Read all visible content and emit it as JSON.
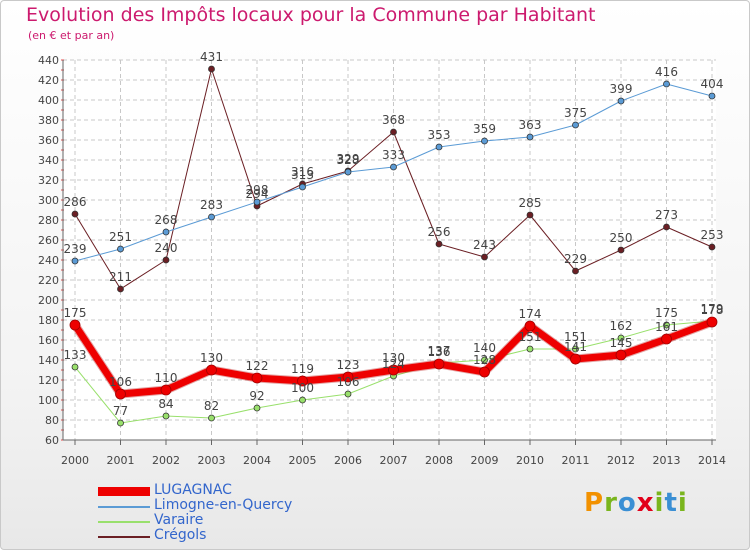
{
  "title": "Evolution des Impôts locaux pour la Commune par Habitant",
  "subtitle": "(en € et par an)",
  "brand": {
    "letters": [
      "P",
      "r",
      "o",
      "x",
      "i",
      "t",
      "i"
    ],
    "colors": [
      "#f29100",
      "#7ab51d",
      "#3a8fd4",
      "#e2001a",
      "#7ab51d",
      "#3a8fd4",
      "#7ab51d"
    ]
  },
  "chart_data": {
    "type": "line",
    "x": [
      "2000",
      "2001",
      "2002",
      "2003",
      "2004",
      "2005",
      "2006",
      "2007",
      "2008",
      "2009",
      "2010",
      "2011",
      "2012",
      "2013",
      "2014"
    ],
    "ylim": [
      60,
      440
    ],
    "yticks": [
      60,
      80,
      100,
      120,
      140,
      160,
      180,
      200,
      220,
      240,
      260,
      280,
      300,
      320,
      340,
      360,
      380,
      400,
      420,
      440
    ],
    "grid": true,
    "legend_position": "bottom-left",
    "series": [
      {
        "name": "Crégols",
        "color": "#6b1f24",
        "width": 1,
        "values": [
          286,
          211,
          240,
          431,
          294,
          316,
          329,
          368,
          256,
          243,
          285,
          229,
          250,
          273,
          253
        ],
        "labels": [
          "286",
          "211",
          "240",
          "431",
          "294",
          "316",
          "329",
          "368",
          "256",
          "243",
          "285",
          "229",
          "250",
          "273",
          "253"
        ]
      },
      {
        "name": "Limogne-en-Quercy",
        "color": "#5b9bd5",
        "width": 1,
        "values": [
          239,
          251,
          268,
          283,
          298,
          313,
          328,
          333,
          353,
          359,
          363,
          375,
          399,
          416,
          404
        ],
        "labels": [
          "239",
          "251",
          "268",
          "283",
          "298",
          "313",
          "328",
          "333",
          "353",
          "359",
          "363",
          "375",
          "399",
          "416",
          "404"
        ]
      },
      {
        "name": "Varaire",
        "color": "#99e06c",
        "width": 1,
        "values": [
          133,
          77,
          84,
          82,
          92,
          100,
          106,
          124,
          137,
          140,
          151,
          151,
          162,
          175,
          179
        ],
        "labels": [
          "133",
          "77",
          "84",
          "82",
          "92",
          "100",
          "106",
          "124",
          "137",
          "140",
          "151",
          "151",
          "162",
          "175",
          "179"
        ]
      },
      {
        "name": "LUGAGNAC",
        "color": "#ee0000",
        "width": 7,
        "values": [
          175,
          106,
          110,
          130,
          122,
          119,
          123,
          130,
          136,
          128,
          174,
          141,
          145,
          161,
          178
        ],
        "labels": [
          "175",
          "106",
          "110",
          "130",
          "122",
          "119",
          "123",
          "130",
          "136",
          "128",
          "174",
          "141",
          "145",
          "161",
          "178"
        ]
      }
    ]
  }
}
